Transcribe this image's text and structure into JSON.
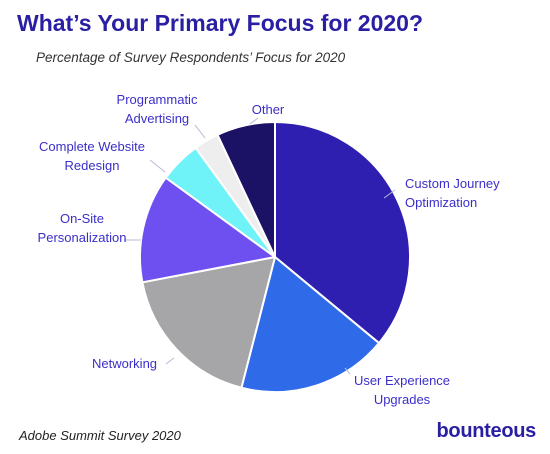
{
  "header": {
    "title": "What’s Your Primary Focus for 2020?",
    "subtitle": "Percentage of Survey Respondents’ Focus for 2020"
  },
  "footer": {
    "source": "Adobe Summit Survey 2020",
    "brand": "bounteous"
  },
  "chart_data": {
    "type": "pie",
    "title": "What’s Your Primary Focus for 2020?",
    "subtitle": "Percentage of Survey Respondents’ Focus for 2020",
    "slices": [
      {
        "label_lines": [
          "Custom Journey",
          "Optimization"
        ],
        "value": 36,
        "color": "#2f1fb0"
      },
      {
        "label_lines": [
          "User Experience",
          "Upgrades"
        ],
        "value": 18,
        "color": "#2f6be8"
      },
      {
        "label_lines": [
          "Networking"
        ],
        "value": 18,
        "color": "#a6a6a8"
      },
      {
        "label_lines": [
          "On-Site",
          "Personalization"
        ],
        "value": 13,
        "color": "#6e4ff0"
      },
      {
        "label_lines": [
          "Complete Website",
          "Redesign"
        ],
        "value": 5,
        "color": "#6ff2f8"
      },
      {
        "label_lines": [
          "Programmatic",
          "Advertising"
        ],
        "value": 3,
        "color": "#eeeeee"
      },
      {
        "label_lines": [
          "Other"
        ],
        "value": 7,
        "color": "#1c1265"
      }
    ],
    "legend": "none"
  }
}
